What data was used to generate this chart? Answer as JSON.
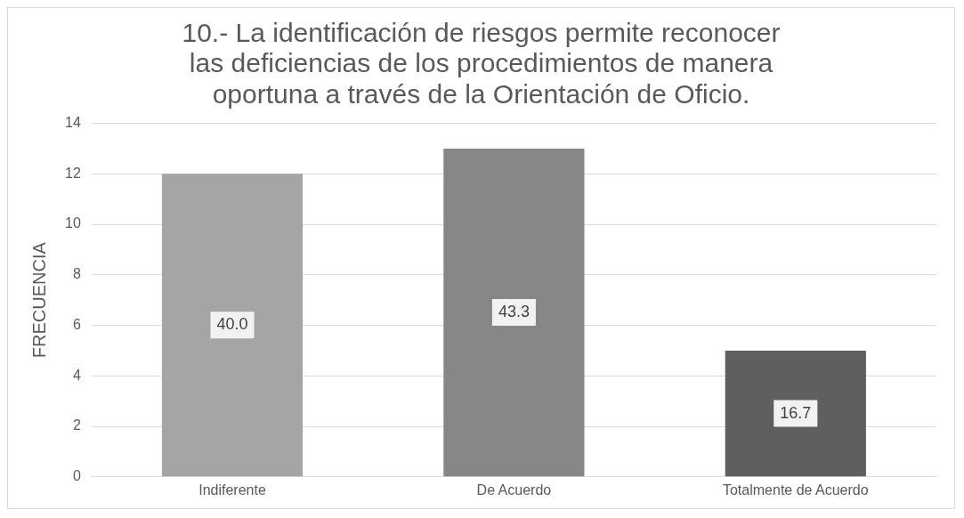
{
  "chart_data": {
    "type": "bar",
    "title": "10.- La identificación de riesgos permite reconocer las deficiencias de los procedimientos de manera oportuna a través de la Orientación de Oficio.",
    "ylabel": "FRECUENCIA",
    "categories": [
      "Indiferente",
      "De Acuerdo",
      "Totalmente de Acuerdo"
    ],
    "values": [
      12,
      13,
      5
    ],
    "colors": [
      "#a5a5a5",
      "#878787",
      "#5f5f5f"
    ],
    "annotations": [
      "40.0",
      "43.3",
      "16.7"
    ],
    "ylim": [
      0,
      14
    ],
    "yticks": [
      0,
      2,
      4,
      6,
      8,
      10,
      12,
      14
    ],
    "grid": "y",
    "legend": false
  }
}
